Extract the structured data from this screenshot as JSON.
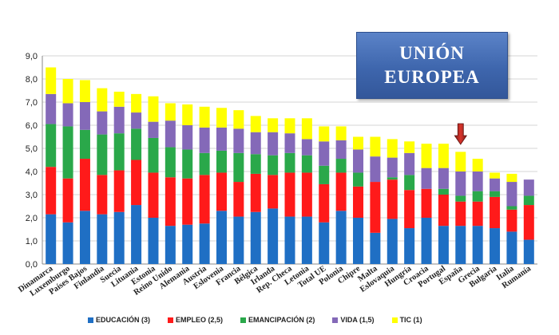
{
  "banner": {
    "line1": "UNIÓN",
    "line2": "EUROPEA"
  },
  "chart_data": {
    "type": "bar",
    "stacked": true,
    "ylim": [
      0,
      9
    ],
    "yticks": [
      "0,0",
      "1,0",
      "2,0",
      "3,0",
      "4,0",
      "5,0",
      "6,0",
      "7,0",
      "8,0",
      "9,0"
    ],
    "grid": true,
    "legend_position": "bottom",
    "highlight_marker": {
      "category": "España",
      "color": "#c0271f"
    },
    "categories": [
      "Dinamarca",
      "Luxemburgo",
      "Países Bajos",
      "Finlandia",
      "Suecia",
      "Lituania",
      "Estonia",
      "Reino Unido",
      "Alemania",
      "Austria",
      "Eslovenia",
      "Francia",
      "Bélgica",
      "Irlanda",
      "Rep. Checa",
      "Letonia",
      "Total UE",
      "Polonia",
      "Chipre",
      "Malta",
      "Eslovaquia",
      "Hungría",
      "Croacia",
      "Portugal",
      "España",
      "Grecia",
      "Bulgaria",
      "Italia",
      "Rumanía"
    ],
    "series": [
      {
        "name": "EDUCACIÓN (3)",
        "color": "#1f6fc4",
        "values": [
          2.15,
          1.8,
          2.3,
          2.15,
          2.25,
          2.55,
          2.0,
          1.65,
          1.7,
          1.75,
          2.3,
          2.05,
          2.25,
          2.4,
          2.05,
          2.05,
          1.8,
          2.3,
          2.0,
          1.35,
          1.95,
          1.55,
          2.0,
          1.65,
          1.65,
          1.65,
          1.55,
          1.4,
          1.05
        ]
      },
      {
        "name": "EMPLEO (2,5)",
        "color": "#ff1a1a",
        "values": [
          2.05,
          1.9,
          2.25,
          1.7,
          1.8,
          1.95,
          1.95,
          2.1,
          2.0,
          2.1,
          1.65,
          1.5,
          1.65,
          1.45,
          1.9,
          1.9,
          1.65,
          1.65,
          1.35,
          2.2,
          1.7,
          1.65,
          1.25,
          1.35,
          1.05,
          1.05,
          1.35,
          0.95,
          1.5
        ]
      },
      {
        "name": "EMANCIPACIÓN (2)",
        "color": "#2aa84a",
        "values": [
          1.85,
          2.25,
          1.25,
          1.75,
          1.6,
          1.35,
          1.5,
          1.3,
          1.25,
          0.95,
          0.95,
          1.25,
          0.85,
          0.85,
          0.85,
          0.75,
          0.8,
          0.6,
          0.6,
          0.0,
          0.1,
          0.65,
          0.0,
          0.25,
          0.25,
          0.45,
          0.25,
          0.15,
          0.4
        ]
      },
      {
        "name": "VIDA (1,5)",
        "color": "#8469b8",
        "values": [
          1.3,
          1.0,
          1.2,
          1.0,
          1.15,
          0.7,
          0.7,
          1.15,
          1.05,
          1.1,
          1.0,
          1.05,
          0.95,
          1.0,
          0.85,
          0.7,
          1.05,
          0.8,
          1.0,
          1.1,
          0.85,
          0.95,
          0.9,
          0.9,
          1.05,
          0.85,
          0.55,
          1.05,
          0.7
        ]
      },
      {
        "name": "TIC (1)",
        "color": "#ffff00",
        "values": [
          1.15,
          1.05,
          0.95,
          1.0,
          0.65,
          0.8,
          1.1,
          0.75,
          0.9,
          0.9,
          0.85,
          0.8,
          0.7,
          0.6,
          0.65,
          0.9,
          0.65,
          0.6,
          0.55,
          0.85,
          0.8,
          0.5,
          1.05,
          1.05,
          0.85,
          0.55,
          0.25,
          0.35,
          0.0
        ]
      }
    ]
  }
}
